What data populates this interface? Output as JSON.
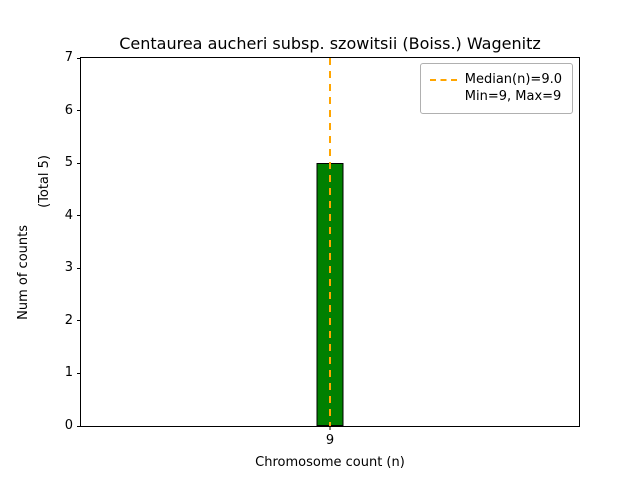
{
  "chart_data": {
    "type": "bar",
    "title": "Centaurea aucheri subsp. szowitsii (Boiss.) Wagenitz",
    "xlabel": "Chromosome count (n)",
    "ylabel": "Num of counts",
    "ylabel_note": "(Total 5)",
    "categories": [
      "9"
    ],
    "values": [
      5
    ],
    "ylim": [
      0,
      7
    ],
    "yticks": [
      0,
      1,
      2,
      3,
      4,
      5,
      6,
      7
    ],
    "bar_color": "#008000",
    "bar_edge_color": "#000000",
    "median_line": {
      "value": 9.0,
      "color": "#ffa500",
      "style": "dashed"
    },
    "legend": {
      "position": "upper-right",
      "items": [
        {
          "label": "Median(n)=9.0",
          "swatch": "dashed-line",
          "color": "#ffa500"
        },
        {
          "label": "Min=9, Max=9",
          "swatch": "none"
        }
      ]
    },
    "grid": false
  }
}
